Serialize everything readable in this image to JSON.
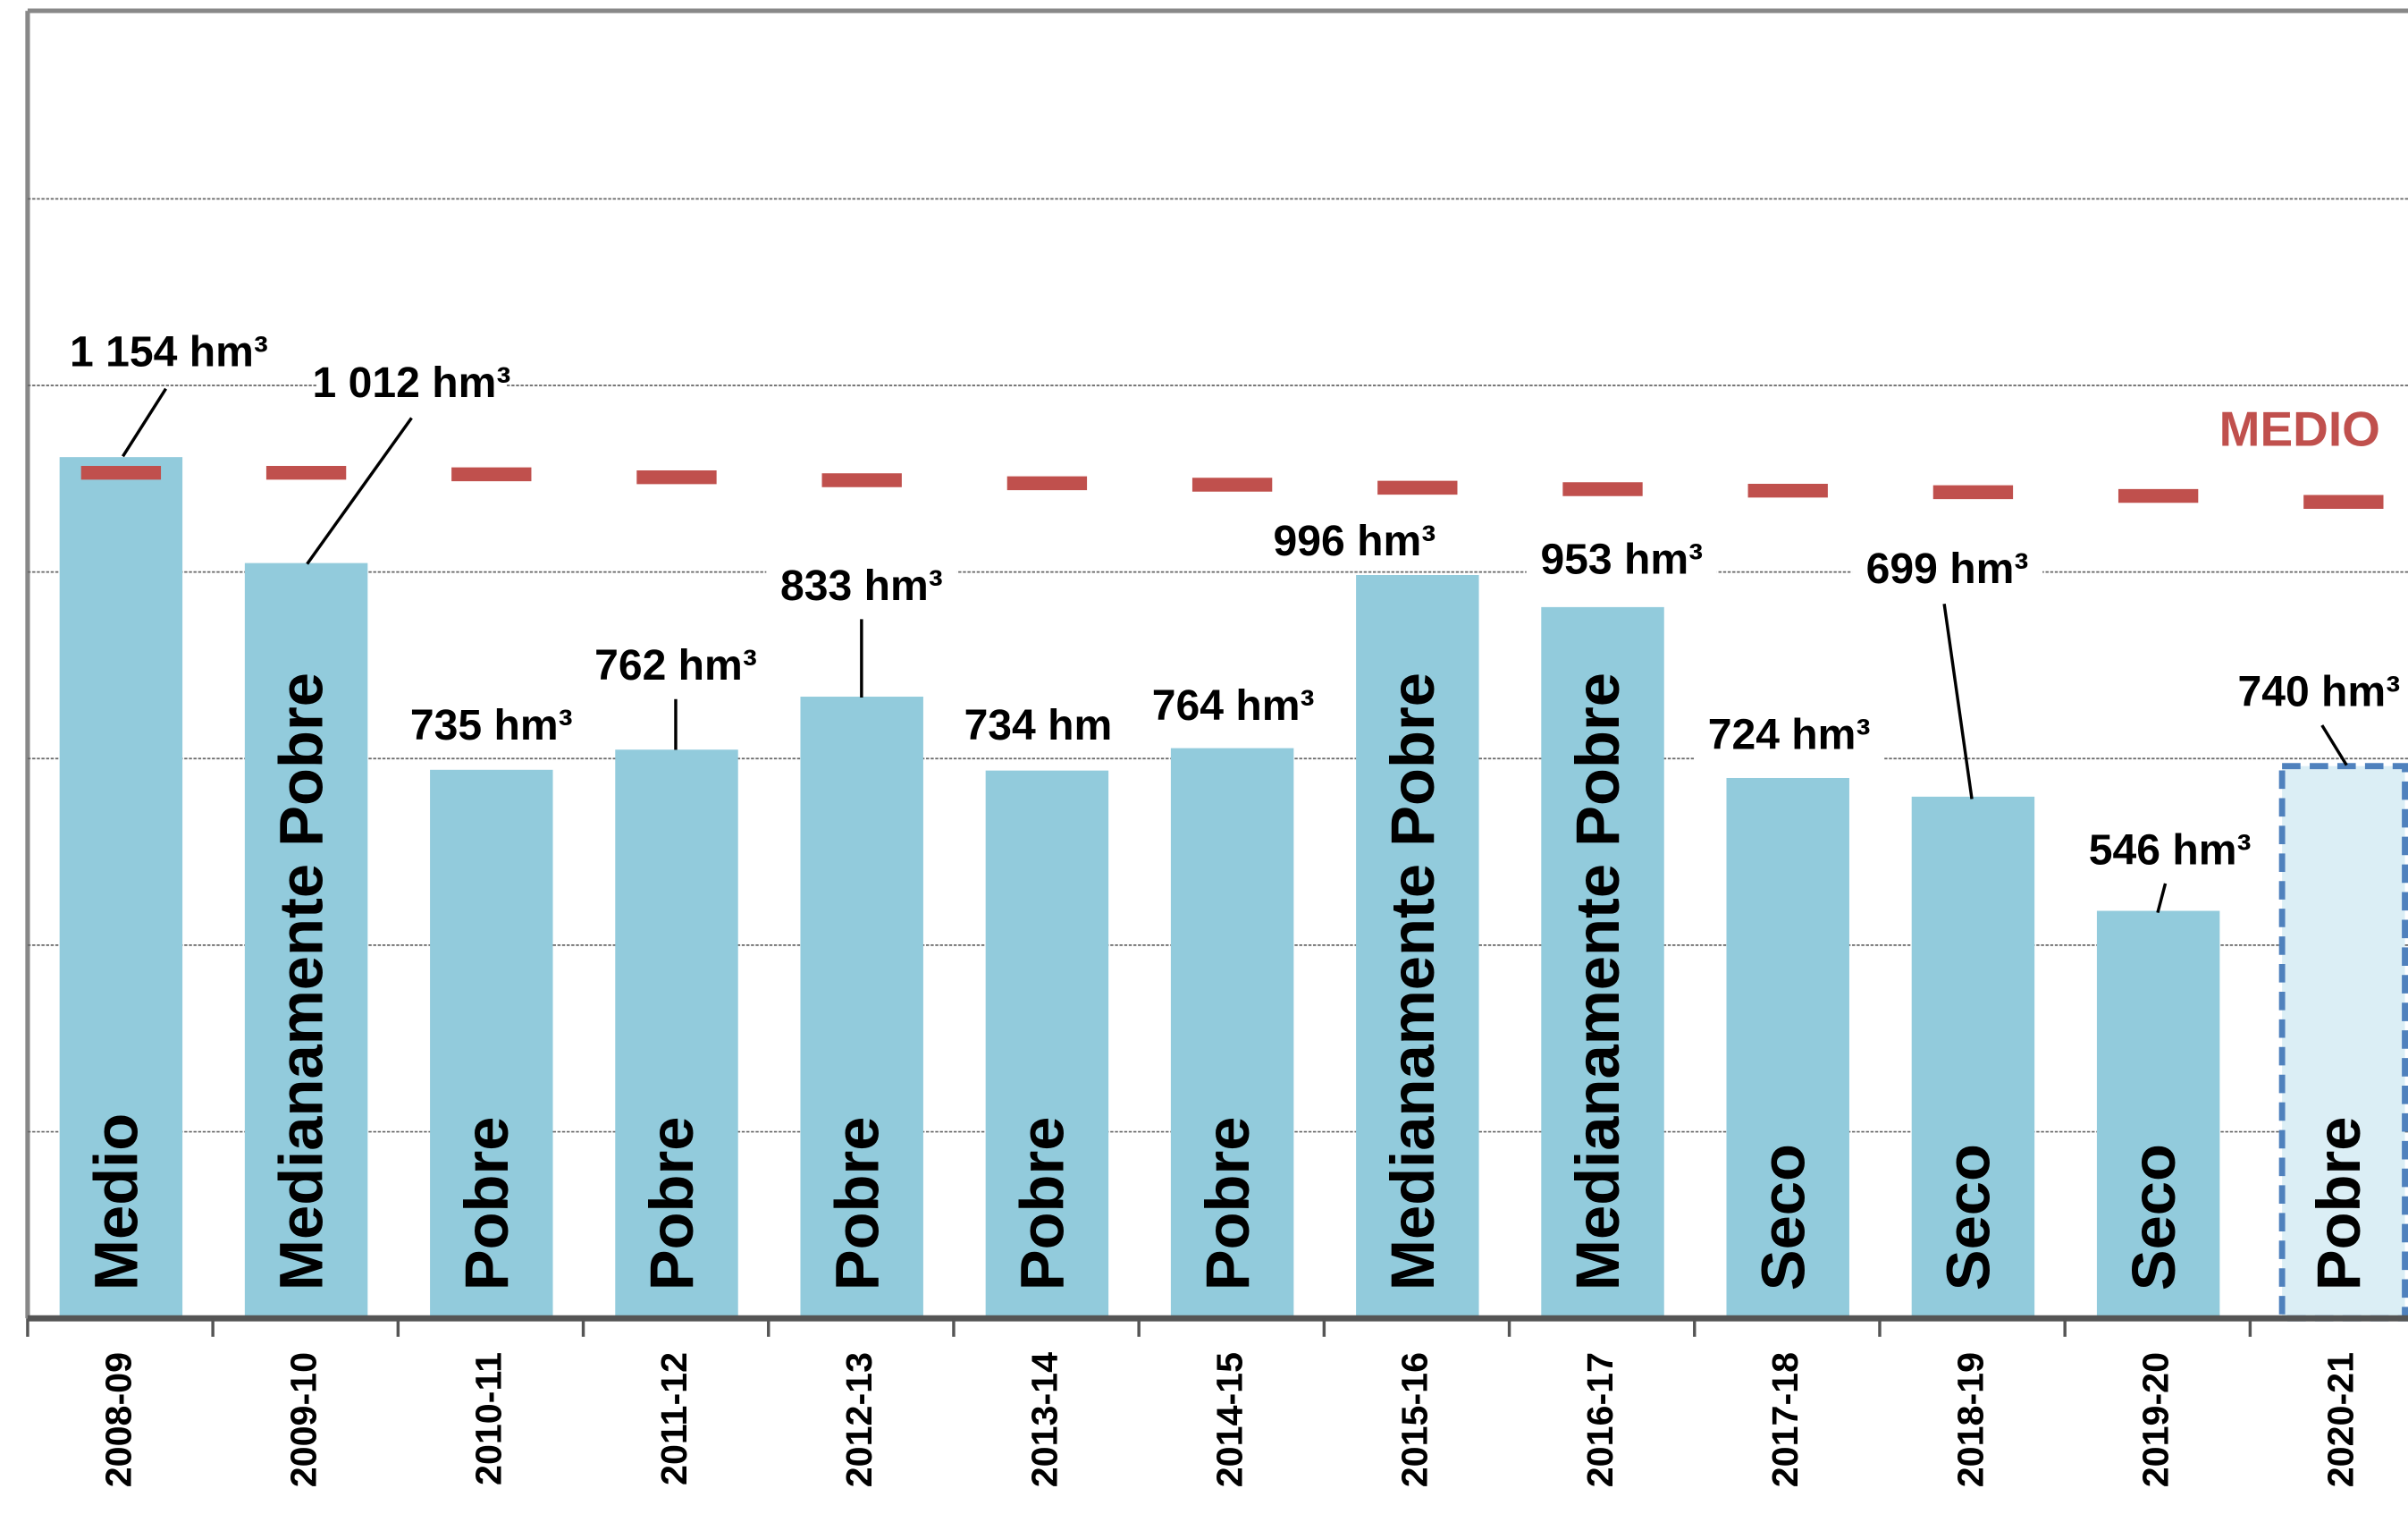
{
  "chart_data": {
    "type": "bar",
    "categories": [
      "2008-09",
      "2009-10",
      "2010-11",
      "2011-12",
      "2012-13",
      "2013-14",
      "2014-15",
      "2015-16",
      "2016-17",
      "2017-18",
      "2018-19",
      "2019-20",
      "2020-21"
    ],
    "values": [
      1154,
      1012,
      735,
      762,
      833,
      734,
      764,
      996,
      953,
      724,
      699,
      546,
      740
    ],
    "value_labels": [
      "1 154 hm³",
      "1 012 hm³",
      "735 hm³",
      "762 hm³",
      "833 hm³",
      "734 hm",
      "764 hm³",
      "996 hm³",
      "953 hm³",
      "724 hm³",
      "699 hm³",
      "546 hm³",
      "740 hm³"
    ],
    "bar_labels": [
      "Medio",
      "Medianamente Pobre",
      "Pobre",
      "Pobre",
      "Pobre",
      "Pobre",
      "Pobre",
      "Medianamente Pobre",
      "Medianamente Pobre",
      "Seco",
      "Seco",
      "Seco",
      "Pobre"
    ],
    "dashed": [
      false,
      false,
      false,
      false,
      false,
      false,
      false,
      false,
      false,
      false,
      false,
      false,
      true
    ],
    "color": "#92cbdc",
    "dashed_color": "#dbeef5",
    "dashed_stroke": "#4f81bd",
    "reference": {
      "name": "MEDIO",
      "color": "#c0504d",
      "values": [
        1133,
        1133,
        1131,
        1127,
        1123,
        1119,
        1117,
        1113,
        1111,
        1109,
        1107,
        1102,
        1094
      ]
    },
    "ylim": [
      0,
      1750
    ],
    "yticks": [
      250,
      500,
      750,
      1000,
      1250,
      1500
    ],
    "grid": true
  }
}
